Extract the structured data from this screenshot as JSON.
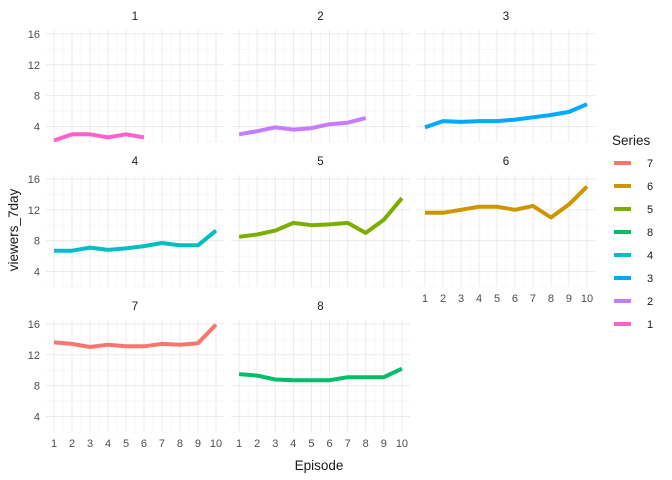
{
  "chart_data": {
    "type": "line",
    "facet_by": "Series",
    "xlabel": "Episode",
    "ylabel": "viewers_7day",
    "xlim": [
      1,
      10
    ],
    "ylim": [
      2,
      16.5
    ],
    "x_ticks": [
      1,
      2,
      3,
      4,
      5,
      6,
      7,
      8,
      9,
      10
    ],
    "y_ticks": [
      4,
      8,
      12,
      16
    ],
    "grid": true,
    "legend": {
      "title": "Series",
      "placement": "right",
      "entries": [
        {
          "label": "7",
          "color": "#F8766D"
        },
        {
          "label": "6",
          "color": "#CD9600"
        },
        {
          "label": "5",
          "color": "#7CAE00"
        },
        {
          "label": "8",
          "color": "#00BE67"
        },
        {
          "label": "4",
          "color": "#00BFC4"
        },
        {
          "label": "3",
          "color": "#00A9FF"
        },
        {
          "label": "2",
          "color": "#C77CFF"
        },
        {
          "label": "1",
          "color": "#FF61CC"
        }
      ]
    },
    "panels": [
      {
        "title": "1",
        "color": "#FF61CC",
        "x": [
          1,
          2,
          3,
          4,
          5,
          6
        ],
        "y": [
          2.2,
          3.0,
          3.0,
          2.6,
          3.0,
          2.6
        ]
      },
      {
        "title": "2",
        "color": "#C77CFF",
        "x": [
          1,
          2,
          3,
          4,
          5,
          6,
          7,
          8
        ],
        "y": [
          3.0,
          3.4,
          3.9,
          3.6,
          3.8,
          4.3,
          4.5,
          5.1
        ]
      },
      {
        "title": "3",
        "color": "#00A9FF",
        "x": [
          1,
          2,
          3,
          4,
          5,
          6,
          7,
          8,
          9,
          10
        ],
        "y": [
          3.9,
          4.7,
          4.6,
          4.7,
          4.7,
          4.9,
          5.2,
          5.5,
          5.9,
          6.9
        ]
      },
      {
        "title": "4",
        "color": "#00BFC4",
        "x": [
          1,
          2,
          3,
          4,
          5,
          6,
          7,
          8,
          9,
          10
        ],
        "y": [
          6.7,
          6.7,
          7.1,
          6.8,
          7.0,
          7.3,
          7.7,
          7.4,
          7.4,
          9.3
        ]
      },
      {
        "title": "5",
        "color": "#7CAE00",
        "x": [
          1,
          2,
          3,
          4,
          5,
          6,
          7,
          8,
          9,
          10
        ],
        "y": [
          8.5,
          8.8,
          9.3,
          10.3,
          10.0,
          10.1,
          10.3,
          9.0,
          10.7,
          13.5
        ]
      },
      {
        "title": "6",
        "color": "#CD9600",
        "x": [
          1,
          2,
          3,
          4,
          5,
          6,
          7,
          8,
          9,
          10
        ],
        "y": [
          11.6,
          11.6,
          12.0,
          12.4,
          12.4,
          12.0,
          12.5,
          11.0,
          12.7,
          15.0
        ]
      },
      {
        "title": "7",
        "color": "#F8766D",
        "x": [
          1,
          2,
          3,
          4,
          5,
          6,
          7,
          8,
          9,
          10
        ],
        "y": [
          13.6,
          13.4,
          13.0,
          13.3,
          13.1,
          13.1,
          13.4,
          13.3,
          13.5,
          15.9
        ]
      },
      {
        "title": "8",
        "color": "#00BE67",
        "x": [
          1,
          2,
          3,
          4,
          5,
          6,
          7,
          8,
          9,
          10
        ],
        "y": [
          9.5,
          9.3,
          8.8,
          8.7,
          8.7,
          8.7,
          9.1,
          9.1,
          9.1,
          10.2
        ]
      }
    ]
  }
}
